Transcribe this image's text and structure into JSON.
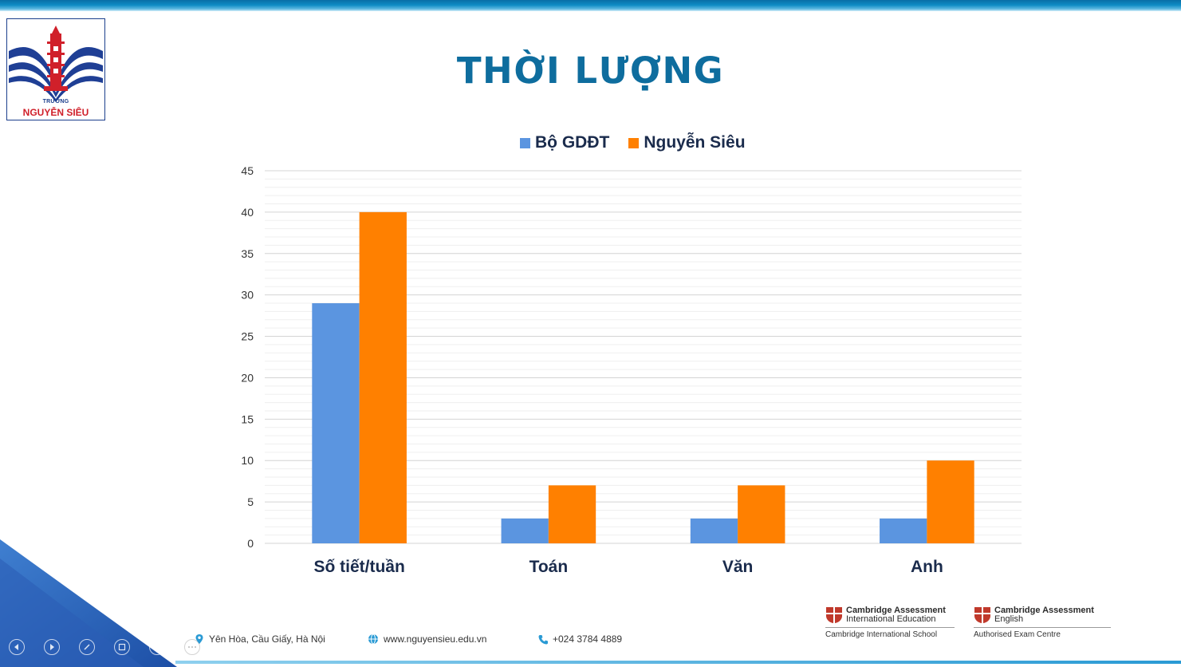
{
  "school": {
    "logo_small": "TRƯỜNG",
    "logo_name": "NGUYỄN SIÊU"
  },
  "slide_title": "THỜI LƯỢNG",
  "chart_data": {
    "type": "bar",
    "categories": [
      "Số tiết/tuần",
      "Toán",
      "Văn",
      "Anh"
    ],
    "series": [
      {
        "name": "Bộ GDĐT",
        "values": [
          29,
          3,
          3,
          3
        ],
        "color": "#5b95e0"
      },
      {
        "name": "Nguyễn Siêu",
        "values": [
          40,
          7,
          7,
          10
        ],
        "color": "#ff8000"
      }
    ],
    "ylim": [
      0,
      45
    ],
    "yticks": [
      "0",
      "5",
      "10",
      "15",
      "20",
      "25",
      "30",
      "35",
      "40",
      "45"
    ],
    "grid": true,
    "legend_position": "top"
  },
  "footer": {
    "address": "Yên Hòa, Cầu Giấy, Hà Nội",
    "website": "www.nguyensieu.edu.vn",
    "phone": "+024 3784 4889",
    "address_icon": "location-pin-icon",
    "website_icon": "globe-icon",
    "phone_icon": "phone-icon"
  },
  "cambridge": [
    {
      "line1": "Cambridge Assessment",
      "line2": "International Education",
      "sub": "Cambridge International School"
    },
    {
      "line1": "Cambridge Assessment",
      "line2": "English",
      "sub": "Authorised Exam Centre"
    }
  ],
  "colors": {
    "title": "#0e6d9e",
    "accent_blue": "#5b95e0",
    "accent_orange": "#ff8000"
  }
}
